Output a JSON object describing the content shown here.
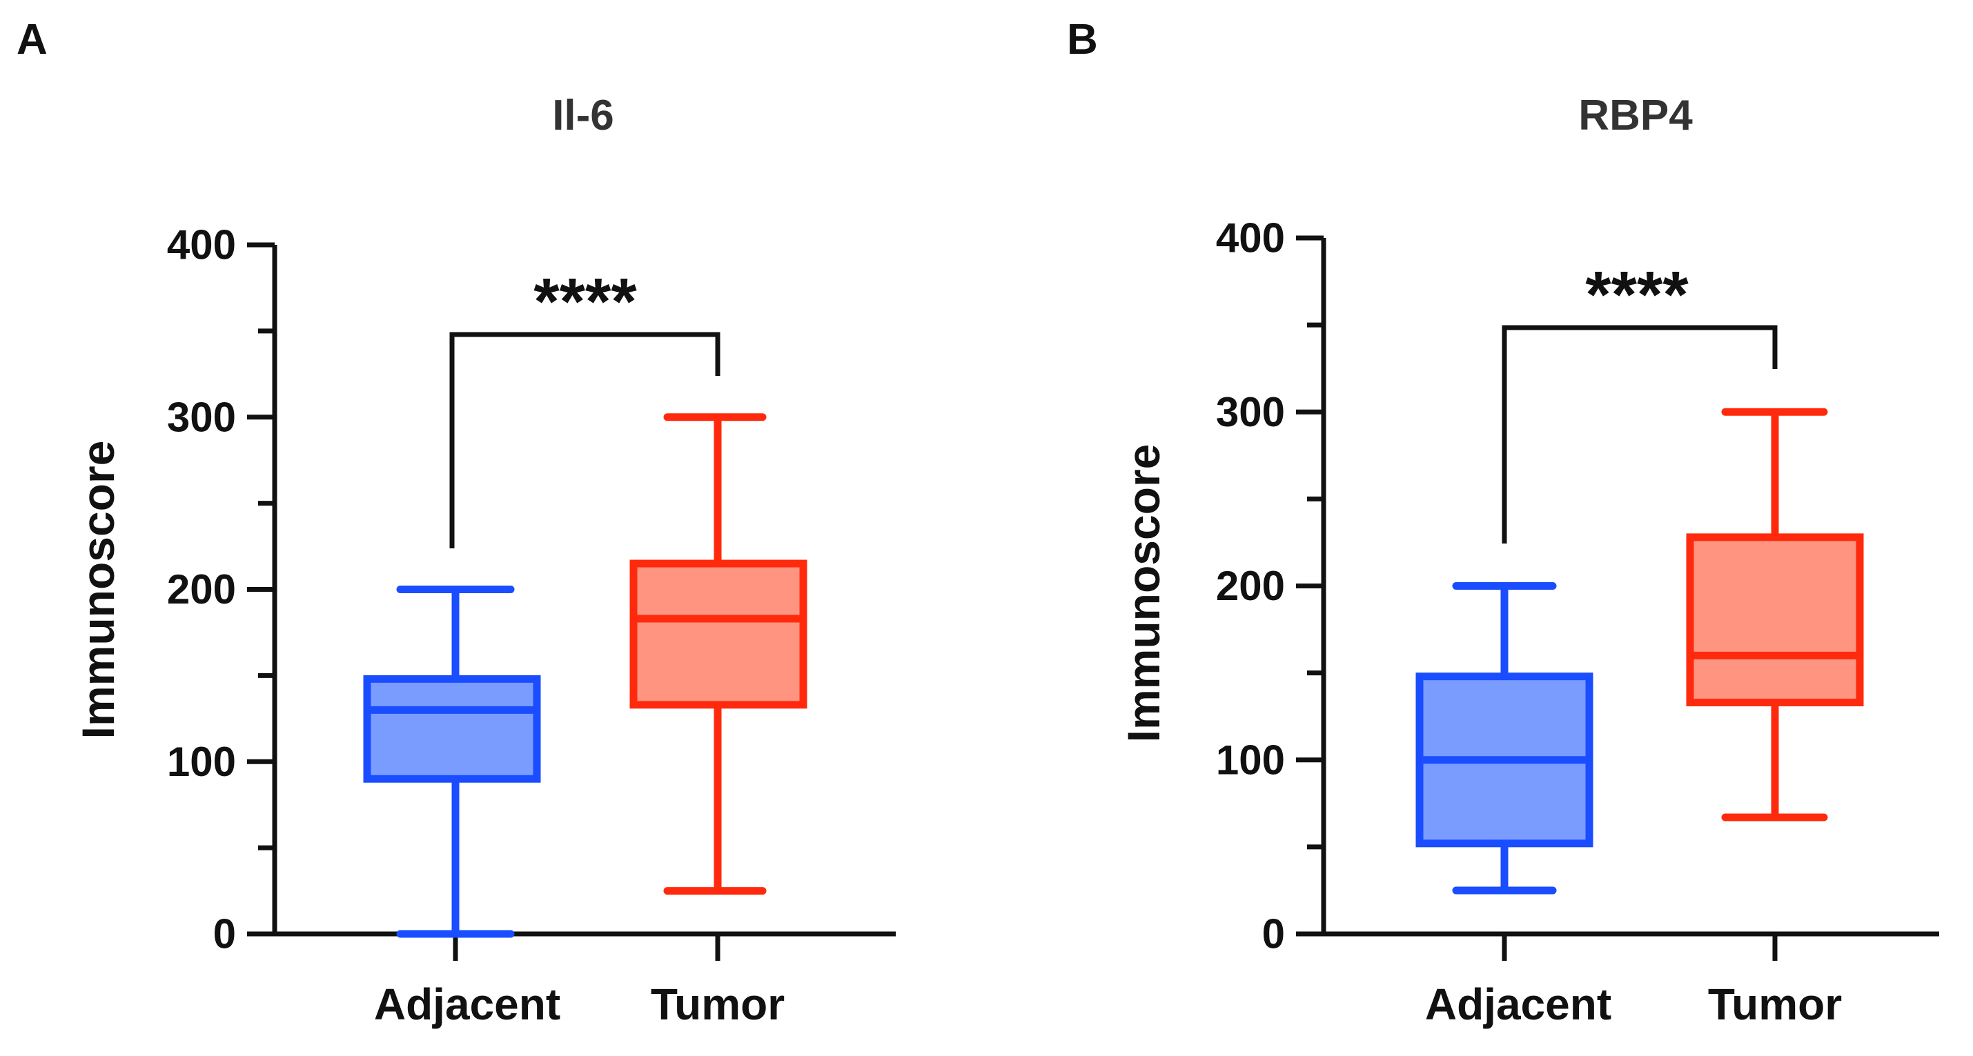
{
  "chart_data": [
    {
      "type": "box",
      "panel_label": "A",
      "title": "Il-6",
      "xlabel": "",
      "ylabel": "Immunoscore",
      "ylim": [
        0,
        400
      ],
      "yticks": [
        0,
        100,
        200,
        300,
        400
      ],
      "yticks_labels": [
        "0",
        "100",
        "200",
        "300",
        "400"
      ],
      "categories": [
        "Adjacent",
        "Tumor"
      ],
      "series": [
        {
          "name": "Adjacent",
          "min": 0,
          "q1": 90,
          "median": 130,
          "q3": 148,
          "max": 200,
          "color": "#1a4dff",
          "fill": "#7b9cff"
        },
        {
          "name": "Tumor",
          "min": 25,
          "q1": 133,
          "median": 183,
          "q3": 215,
          "max": 300,
          "color": "#ff2a0d",
          "fill": "#ff9580"
        }
      ],
      "significance": {
        "label": "****",
        "from": "Adjacent",
        "to": "Tumor"
      }
    },
    {
      "type": "box",
      "panel_label": "B",
      "title": "RBP4",
      "xlabel": "",
      "ylabel": "Immunoscore",
      "ylim": [
        0,
        400
      ],
      "yticks": [
        0,
        100,
        200,
        300,
        400
      ],
      "yticks_labels": [
        "0",
        "100",
        "200",
        "300",
        "400"
      ],
      "categories": [
        "Adjacent",
        "Tumor"
      ],
      "series": [
        {
          "name": "Adjacent",
          "min": 25,
          "q1": 52,
          "median": 100,
          "q3": 148,
          "max": 200,
          "color": "#1a4dff",
          "fill": "#7b9cff"
        },
        {
          "name": "Tumor",
          "min": 67,
          "q1": 133,
          "median": 160,
          "q3": 228,
          "max": 300,
          "color": "#ff2a0d",
          "fill": "#ff9580"
        }
      ],
      "significance": {
        "label": "****",
        "from": "Adjacent",
        "to": "Tumor"
      }
    }
  ]
}
